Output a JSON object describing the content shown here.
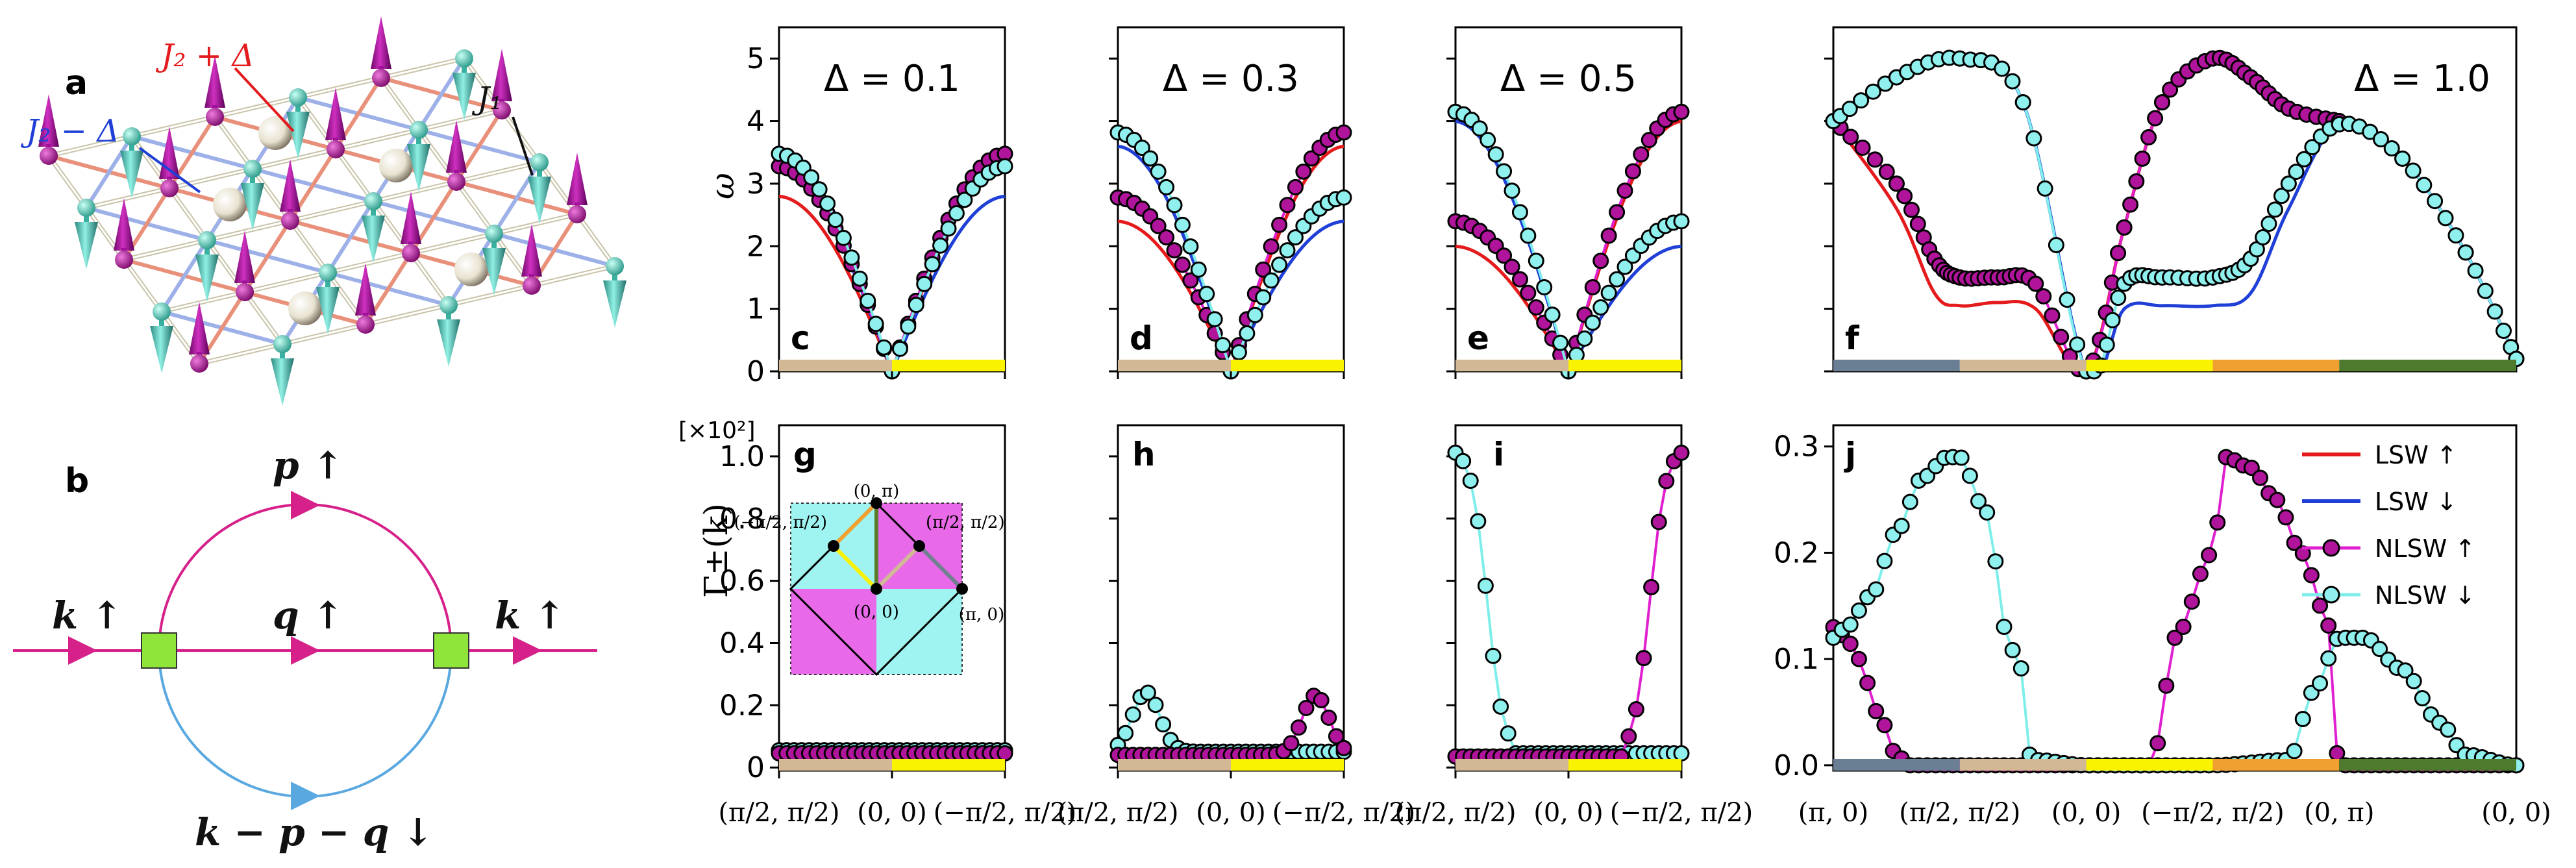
{
  "colors": {
    "lsw_up": "#e41a1c",
    "lsw_dn": "#1f3fd6",
    "nlsw_up_fill": "#b0149b",
    "nlsw_up_line": "#e020d0",
    "nlsw_dn_fill": "#8ff0ee",
    "nlsw_dn_line": "#7eeeea",
    "bar_tan": "#d2b894",
    "bar_yellow": "#f9f200",
    "bar_slate": "#6a7f93",
    "bar_orange": "#f0a030",
    "bar_green": "#4e7a2e",
    "feyn_line": "#d6208a",
    "feyn_blue": "#5aa8e0",
    "vertex": "#8fe53a",
    "spin_up": "#b0109a",
    "spin_dn": "#4fd0c0"
  },
  "panel_labels": {
    "a": "a",
    "b": "b",
    "c": "c",
    "d": "d",
    "e": "e",
    "f": "f",
    "g": "g",
    "h": "h",
    "i": "i",
    "j": "j"
  },
  "lattice": {
    "label_plus": "J₂ + Δ",
    "label_minus": "J₂ − Δ",
    "label_j1": "J₁"
  },
  "feynman": {
    "top": "p ↑",
    "middle": "q ↑",
    "left": "k ↑",
    "right": "k ↑",
    "bottom": "k − p − q ↓"
  },
  "chart_data": [
    {
      "id": "c",
      "type": "line",
      "delta_label": "Δ = 0.1",
      "delta": 0.1,
      "ylabel": "ω",
      "ylim": [
        0,
        5.5
      ],
      "yticks": [
        "0",
        "1",
        "2",
        "3",
        "4",
        "5"
      ],
      "xticks": [
        "(π/2, π/2)",
        "(0, 0)",
        "(−π/2, π/2)"
      ],
      "series": [
        {
          "name": "LSW ↑",
          "endpoints": [
            2.8,
            0,
            3.2
          ]
        },
        {
          "name": "LSW ↓",
          "endpoints": [
            3.2,
            0,
            2.8
          ]
        },
        {
          "name": "NLSW ↑",
          "endpoints": [
            3.28,
            0,
            3.48
          ]
        },
        {
          "name": "NLSW ↓",
          "endpoints": [
            3.48,
            0,
            3.28
          ]
        }
      ]
    },
    {
      "id": "d",
      "type": "line",
      "delta_label": "Δ = 0.3",
      "delta": 0.3,
      "xticks": [
        "(π/2, π/2)",
        "(0, 0)",
        "(−π/2, π/2)"
      ],
      "series": [
        {
          "name": "LSW ↑",
          "endpoints": [
            2.4,
            0,
            3.6
          ]
        },
        {
          "name": "LSW ↓",
          "endpoints": [
            3.6,
            0,
            2.4
          ]
        },
        {
          "name": "NLSW ↑",
          "endpoints": [
            2.78,
            0,
            3.82
          ]
        },
        {
          "name": "NLSW ↓",
          "endpoints": [
            3.82,
            0,
            2.78
          ]
        }
      ]
    },
    {
      "id": "e",
      "type": "line",
      "delta_label": "Δ = 0.5",
      "delta": 0.5,
      "xticks": [
        "(π/2, π/2)",
        "(0, 0)",
        "(−π/2, π/2)"
      ],
      "series": [
        {
          "name": "LSW ↑",
          "endpoints": [
            2.0,
            0,
            4.0
          ]
        },
        {
          "name": "LSW ↓",
          "endpoints": [
            4.0,
            0,
            2.0
          ]
        },
        {
          "name": "NLSW ↑",
          "endpoints": [
            2.4,
            0,
            4.15
          ]
        },
        {
          "name": "NLSW ↓",
          "endpoints": [
            4.15,
            0,
            2.4
          ]
        }
      ]
    },
    {
      "id": "f",
      "type": "line",
      "delta_label": "Δ = 1.0",
      "delta": 1.0,
      "xticks": [
        "(π, 0)",
        "(π/2, π/2)",
        "(0, 0)",
        "(−π/2, π/2)",
        "(0, π)",
        "(0, 0)"
      ],
      "x_positions": [
        0,
        1,
        2,
        3,
        4,
        5.4
      ],
      "series": [
        {
          "name": "LSW ↑",
          "x": [
            0,
            0.5,
            0.8,
            1.0,
            1.3,
            1.6,
            2.0,
            2.3,
            2.6,
            3.0,
            3.3,
            3.6,
            4.0
          ],
          "y": [
            4.0,
            2.6,
            1.25,
            1.05,
            1.1,
            1.0,
            0,
            2.3,
            4.3,
            5.0,
            4.7,
            4.2,
            4.0
          ]
        },
        {
          "name": "LSW ↓",
          "x": [
            0,
            0.5,
            1.0,
            1.5,
            2.0,
            2.3,
            2.6,
            3.0,
            3.3,
            3.6,
            4.0,
            4.5,
            5.0,
            5.4
          ],
          "y": [
            4.0,
            4.7,
            5.0,
            4.3,
            0,
            1.0,
            1.05,
            1.05,
            1.25,
            2.6,
            3.95,
            3.4,
            1.9,
            0.2
          ]
        },
        {
          "name": "NLSW ↑",
          "x": [
            0,
            0.5,
            0.8,
            1.0,
            1.3,
            1.6,
            2.0,
            2.3,
            2.6,
            3.0,
            3.3,
            3.6,
            4.0
          ],
          "y": [
            4.0,
            3.0,
            1.8,
            1.5,
            1.5,
            1.4,
            0,
            2.3,
            4.3,
            5.0,
            4.7,
            4.2,
            4.0
          ]
        },
        {
          "name": "NLSW ↓",
          "x": [
            0,
            0.5,
            1.0,
            1.5,
            2.0,
            2.3,
            2.6,
            3.0,
            3.3,
            3.6,
            4.0,
            4.5,
            5.0,
            5.4
          ],
          "y": [
            4.0,
            4.7,
            5.0,
            4.3,
            0,
            1.4,
            1.5,
            1.5,
            1.8,
            3.0,
            3.95,
            3.4,
            1.9,
            0.2
          ]
        }
      ]
    },
    {
      "id": "g",
      "type": "line",
      "ylabel": "Γ±(k)",
      "scale_label": "[×10²]",
      "ylim": [
        0,
        1.1
      ],
      "yticks": [
        "0",
        "0.2",
        "0.4",
        "0.6",
        "0.8",
        "1.0"
      ],
      "xticks": [
        "(π/2, π/2)",
        "(0, 0)",
        "(−π/2, π/2)"
      ],
      "series": [
        {
          "name": "NLSW ↑",
          "level": 0.045
        },
        {
          "name": "NLSW ↓",
          "level": 0.055
        }
      ]
    },
    {
      "id": "h",
      "type": "line",
      "xticks": [
        "(π/2, π/2)",
        "(0, 0)",
        "(−π/2, π/2)"
      ],
      "series": [
        {
          "name": "NLSW ↑",
          "bump_center": 1.75,
          "bump_height": 0.23
        },
        {
          "name": "NLSW ↓",
          "bump_center": 0.25,
          "bump_height": 0.23
        }
      ]
    },
    {
      "id": "i",
      "type": "line",
      "xticks": [
        "(π/2, π/2)",
        "(0, 0)",
        "(−π/2, π/2)"
      ],
      "series": [
        {
          "name": "NLSW ↑",
          "peak": 1.02
        },
        {
          "name": "NLSW ↓",
          "peak": 1.02
        }
      ]
    },
    {
      "id": "j",
      "type": "line",
      "ylim": [
        0,
        0.32
      ],
      "yticks": [
        "0.0",
        "0.1",
        "0.2",
        "0.3"
      ],
      "xticks": [
        "(π, 0)",
        "(π/2, π/2)",
        "(0, 0)",
        "(−π/2, π/2)",
        "(0, π)",
        "(0, 0)"
      ],
      "x_positions": [
        0,
        1,
        2,
        3,
        4,
        5.4
      ],
      "series": [
        {
          "name": "NLSW ↑",
          "x": [
            0,
            0.1,
            0.2,
            0.35,
            0.5,
            0.6,
            1.0,
            2.0,
            2.5,
            2.55,
            2.6,
            2.7,
            3.0,
            3.1,
            3.3,
            3.5,
            3.7,
            3.9,
            4.0,
            4.3,
            5.4
          ],
          "y": [
            0.13,
            0.12,
            0.1,
            0.05,
            0.01,
            0,
            0,
            0,
            0,
            0.01,
            0.06,
            0.12,
            0.2,
            0.29,
            0.28,
            0.25,
            0.2,
            0.14,
            0,
            0,
            0
          ]
        },
        {
          "name": "NLSW ↓",
          "x": [
            0,
            0.1,
            0.3,
            0.5,
            0.7,
            0.9,
            1.0,
            1.2,
            1.4,
            1.5,
            1.55,
            1.6,
            2.0,
            3.0,
            3.6,
            3.8,
            4.0,
            4.2,
            4.5,
            4.8,
            5.0,
            5.4
          ],
          "y": [
            0.12,
            0.13,
            0.16,
            0.22,
            0.27,
            0.29,
            0.29,
            0.24,
            0.11,
            0.09,
            0.01,
            0.005,
            0,
            0,
            0.005,
            0.07,
            0.12,
            0.12,
            0.09,
            0.04,
            0.01,
            0
          ]
        }
      ]
    }
  ],
  "legend": {
    "items": [
      {
        "label": "LSW ↑",
        "kind": "line",
        "color": "#e41a1c"
      },
      {
        "label": "LSW ↓",
        "kind": "line",
        "color": "#1f3fd6"
      },
      {
        "label": "NLSW ↑",
        "kind": "marker",
        "color": "#b0149b",
        "line": "#e020d0"
      },
      {
        "label": "NLSW ↓",
        "kind": "marker",
        "color": "#8ff0ee",
        "line": "#7eeeea"
      }
    ]
  },
  "inset": {
    "labels": [
      "(0, π)",
      "(−π/2, π/2)",
      "(π/2, π/2)",
      "(0, 0)",
      "(π, 0)"
    ]
  }
}
